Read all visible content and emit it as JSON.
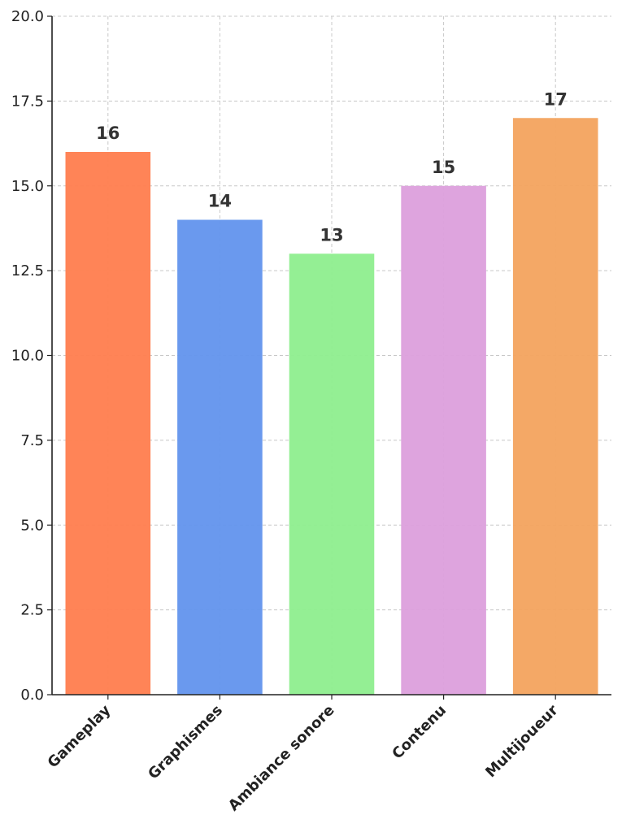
{
  "chart_data": {
    "type": "bar",
    "title": "",
    "xlabel": "",
    "ylabel": "",
    "categories": [
      "Gameplay",
      "Graphismes",
      "Ambiance sonore",
      "Contenu",
      "Multijoueur"
    ],
    "values": [
      16,
      14,
      13,
      15,
      17
    ],
    "colors": [
      "#FF7F50",
      "#6495ED",
      "#90EE90",
      "#DDA0DD",
      "#F4A460"
    ],
    "ylim": [
      0,
      20
    ],
    "yticks": [
      "0.0",
      "2.5",
      "5.0",
      "7.5",
      "10.0",
      "12.5",
      "15.0",
      "17.5",
      "20.0"
    ],
    "grid": true,
    "data_labels": [
      "16",
      "14",
      "13",
      "15",
      "17"
    ]
  }
}
